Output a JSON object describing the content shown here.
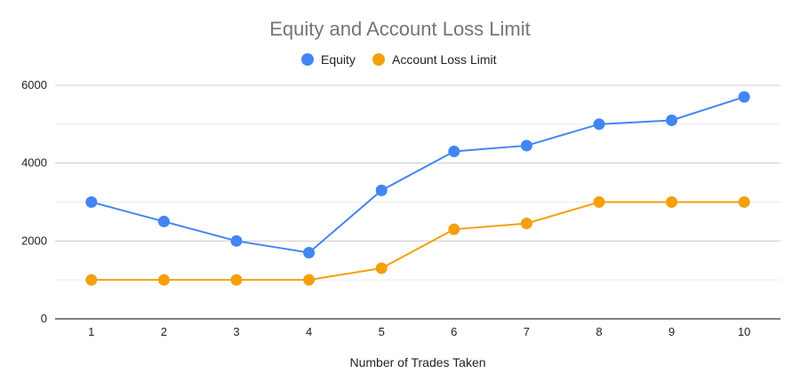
{
  "chart_data": {
    "type": "line",
    "title": "Equity and Account Loss Limit",
    "xlabel": "Number of Trades Taken",
    "ylabel": "",
    "x": [
      1,
      2,
      3,
      4,
      5,
      6,
      7,
      8,
      9,
      10
    ],
    "ylim": [
      0,
      6000
    ],
    "yticks": [
      0,
      2000,
      4000,
      6000
    ],
    "grid": true,
    "legend_position": "top",
    "series": [
      {
        "name": "Equity",
        "color": "#4285F4",
        "values": [
          3000,
          2500,
          2000,
          1700,
          3300,
          4300,
          4450,
          5000,
          5100,
          5700
        ]
      },
      {
        "name": "Account Loss Limit",
        "color": "#F4A00C",
        "values": [
          1000,
          1000,
          1000,
          1000,
          1300,
          2300,
          2450,
          3000,
          3000,
          3000
        ]
      }
    ]
  }
}
